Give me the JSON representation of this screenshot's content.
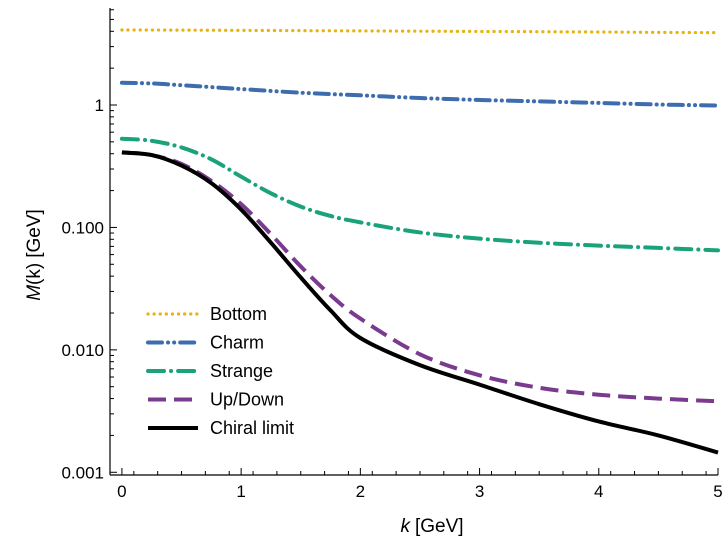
{
  "chart_data": {
    "type": "line",
    "xlabel_var": "k",
    "xlabel_unit": "[GeV]",
    "ylabel_func": "M",
    "ylabel_arg": "(k)",
    "ylabel_unit": "[GeV]",
    "xlim": [
      -0.1,
      5
    ],
    "ylim": [
      0.00095,
      6.2
    ],
    "yscale": "log",
    "grid": false,
    "legend_position": "bottom-left",
    "x_ticks": [
      0,
      1,
      2,
      3,
      4,
      5
    ],
    "x_tick_labels": [
      "0",
      "1",
      "2",
      "3",
      "4",
      "5"
    ],
    "y_ticks": [
      0.001,
      0.01,
      0.1,
      1
    ],
    "y_tick_labels": [
      "0.001",
      "0.010",
      "0.100",
      "1"
    ],
    "series": [
      {
        "name": "Bottom",
        "color": "#E8B30F",
        "style": "dotted",
        "x": [
          0,
          0.5,
          1,
          1.5,
          2,
          2.5,
          3,
          3.5,
          4,
          4.5,
          5
        ],
        "y": [
          4.1,
          4.09,
          4.07,
          4.05,
          4.03,
          4.01,
          3.99,
          3.97,
          3.95,
          3.92,
          3.9
        ]
      },
      {
        "name": "Charm",
        "color": "#3D6DAE",
        "style": "dash-dot-dot",
        "x": [
          0,
          0.25,
          0.5,
          0.75,
          1,
          1.5,
          2,
          2.5,
          3,
          3.5,
          4,
          4.5,
          5
        ],
        "y": [
          1.52,
          1.5,
          1.45,
          1.4,
          1.35,
          1.26,
          1.2,
          1.14,
          1.1,
          1.07,
          1.04,
          1.01,
          0.99
        ]
      },
      {
        "name": "Strange",
        "color": "#1AA37A",
        "style": "dash-dot",
        "x": [
          0,
          0.25,
          0.5,
          0.75,
          1,
          1.25,
          1.5,
          1.75,
          2,
          2.5,
          3,
          3.5,
          4,
          4.5,
          5
        ],
        "y": [
          0.53,
          0.51,
          0.45,
          0.36,
          0.26,
          0.19,
          0.148,
          0.124,
          0.11,
          0.091,
          0.081,
          0.075,
          0.071,
          0.068,
          0.065
        ]
      },
      {
        "name": "Up/Down",
        "color": "#7A3B8F",
        "style": "dashed",
        "x": [
          0,
          0.25,
          0.5,
          0.75,
          1,
          1.25,
          1.5,
          1.75,
          2,
          2.5,
          3,
          3.5,
          4,
          4.5,
          5
        ],
        "y": [
          0.41,
          0.39,
          0.33,
          0.24,
          0.155,
          0.088,
          0.048,
          0.028,
          0.018,
          0.0092,
          0.0062,
          0.0049,
          0.0043,
          0.004,
          0.0038
        ]
      },
      {
        "name": "Chiral limit",
        "color": "#000000",
        "style": "solid",
        "x": [
          0,
          0.25,
          0.5,
          0.75,
          1,
          1.25,
          1.5,
          1.75,
          2,
          2.5,
          3,
          3.5,
          4,
          4.5,
          5
        ],
        "y": [
          0.41,
          0.39,
          0.32,
          0.23,
          0.14,
          0.075,
          0.039,
          0.021,
          0.0125,
          0.0075,
          0.0052,
          0.0036,
          0.0026,
          0.002,
          0.00145
        ]
      }
    ]
  }
}
